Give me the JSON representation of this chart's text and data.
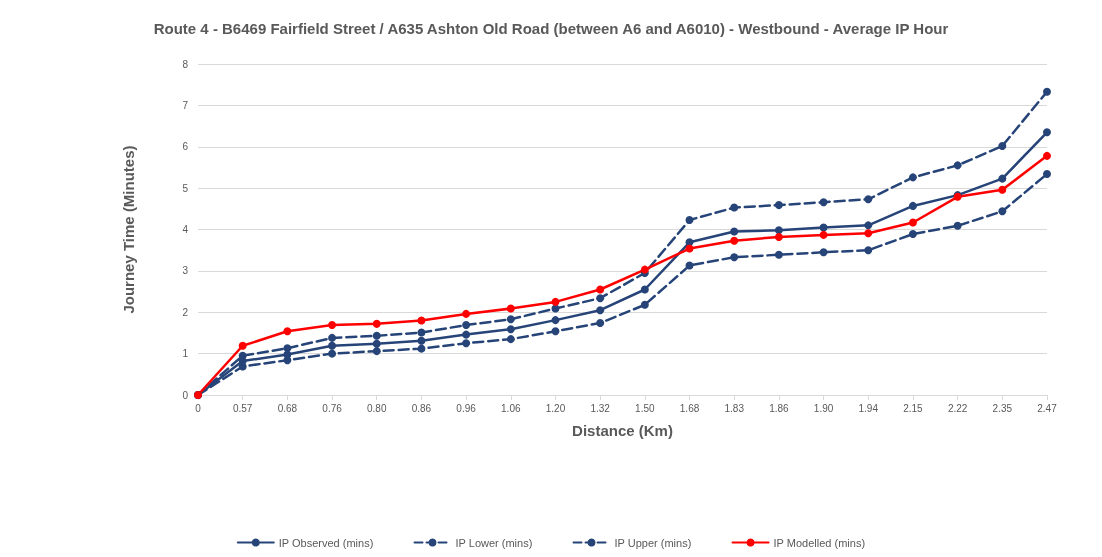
{
  "chart_data": {
    "type": "line",
    "title": "Route 4 - B6469 Fairfield Street / A635 Ashton Old Road (between A6 and A6010) - Westbound - Average IP Hour",
    "xlabel": "Distance (Km)",
    "ylabel": "Journey Time (Minutes)",
    "categories": [
      "0",
      "0.57",
      "0.68",
      "0.76",
      "0.80",
      "0.86",
      "0.96",
      "1.06",
      "1.20",
      "1.32",
      "1.50",
      "1.68",
      "1.83",
      "1.86",
      "1.90",
      "1.94",
      "2.15",
      "2.22",
      "2.35",
      "2.47"
    ],
    "ylim": [
      0,
      8
    ],
    "yticks": [
      0,
      1,
      2,
      3,
      4,
      5,
      6,
      7,
      8
    ],
    "grid": "y",
    "legend": "bottom",
    "marker": "circle",
    "series": [
      {
        "name": "IP Observed (mins)",
        "color": "#264478",
        "line_style": "solid",
        "values": [
          0,
          0.82,
          0.98,
          1.19,
          1.24,
          1.31,
          1.46,
          1.59,
          1.81,
          2.05,
          2.55,
          3.69,
          3.95,
          3.98,
          4.05,
          4.1,
          4.57,
          4.83,
          5.23,
          6.35
        ]
      },
      {
        "name": "IP Lower (mins)",
        "color": "#264478",
        "line_style": "dashed",
        "values": [
          0,
          0.69,
          0.84,
          1.0,
          1.06,
          1.12,
          1.25,
          1.35,
          1.54,
          1.74,
          2.18,
          3.13,
          3.33,
          3.39,
          3.45,
          3.5,
          3.89,
          4.09,
          4.44,
          5.34
        ]
      },
      {
        "name": "IP Upper (mins)",
        "color": "#264478",
        "line_style": "dashed",
        "values": [
          0,
          0.95,
          1.13,
          1.38,
          1.43,
          1.51,
          1.69,
          1.83,
          2.09,
          2.34,
          2.95,
          4.23,
          4.53,
          4.59,
          4.66,
          4.73,
          5.26,
          5.55,
          6.02,
          7.33
        ]
      },
      {
        "name": "IP Modelled (mins)",
        "color": "#ff0000",
        "line_style": "solid",
        "values": [
          0,
          1.19,
          1.54,
          1.69,
          1.72,
          1.8,
          1.96,
          2.09,
          2.25,
          2.55,
          3.03,
          3.54,
          3.73,
          3.82,
          3.87,
          3.91,
          4.17,
          4.79,
          4.96,
          5.78
        ]
      }
    ]
  }
}
